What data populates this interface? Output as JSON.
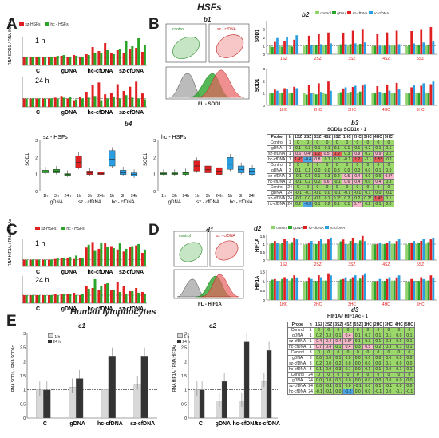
{
  "header": {
    "hsfs_title": "HSFs",
    "lymph_title": "Human lymphocytes"
  },
  "panels": {
    "A": "A",
    "B": "B",
    "C": "C",
    "D": "D",
    "E": "E"
  },
  "sublabels": {
    "b1": "b1",
    "b2": "b2",
    "b3": "b3",
    "b4": "b4",
    "d1": "d1",
    "d2": "d2",
    "d3": "d3",
    "e1": "e1",
    "e2": "e2"
  },
  "legends": {
    "sz": "sz-HSFs",
    "hc": "hc - HSFs",
    "hc2": "hc - HSFs",
    "control": "control",
    "gdna": "gDNA",
    "szcf": "sz-cfDNA",
    "hccf": "hc-cfDNA",
    "h1": "1 h",
    "h24": "24 h"
  },
  "flow": {
    "control": "control",
    "sz": "sz - cfDNA",
    "fl_sod": "FL - SOD1",
    "fl_hif": "FL - HIF1A"
  },
  "b3_title": "SOD1ᵢ/ SOD1c - 1",
  "d3_title": "HIF1Aᵢ/ HIF1Ac - 1",
  "colors": {
    "red": "#e02020",
    "green": "#2aa52a",
    "blue": "#2a9ee0",
    "lightgreen": "#8fd16a",
    "dark": "#333333",
    "light": "#d8d8d8"
  },
  "chart_data": [
    {
      "id": "A1",
      "type": "bar",
      "panel": "A",
      "time": "1 h",
      "ylabel": "RNA SOD1ᵢ / RNA SOD1c",
      "groups": [
        "C",
        "gDNA",
        "hc-cfDNA",
        "sz-cfDNA"
      ],
      "series": [
        {
          "name": "sz-HSFs",
          "values": [
            1,
            1,
            1,
            1,
            1,
            1.1,
            1.2,
            1.0,
            1.3,
            1.1,
            1.4,
            2.3,
            1.8,
            2.8,
            1.6,
            1.9,
            1.5,
            2.1,
            2.2,
            1.7
          ]
        },
        {
          "name": "hc - HSFs",
          "values": [
            1,
            1,
            1,
            1,
            1,
            1.2,
            1.3,
            1.1,
            1.2,
            1.0,
            1.3,
            1.6,
            1.5,
            1.9,
            1.4,
            2.0,
            3.1,
            2.4,
            3.4,
            2.6
          ]
        }
      ]
    },
    {
      "id": "A2",
      "type": "bar",
      "panel": "A",
      "time": "24 h",
      "groups": [
        "C",
        "gDNA",
        "hc-cfDNA",
        "sz-cfDNA"
      ],
      "series": [
        {
          "name": "sz-HSFs",
          "values": [
            1,
            1,
            1,
            1,
            1,
            1.1,
            1.3,
            1.0,
            0.8,
            1.2,
            1.8,
            2.6,
            2.9,
            1.5,
            1.7,
            2.7,
            1.9,
            2.4,
            3.0,
            1.6
          ]
        },
        {
          "name": "hc - HSFs",
          "values": [
            1,
            1,
            1,
            1,
            1,
            1.0,
            1.1,
            1.2,
            0.9,
            1.0,
            1.1,
            1.3,
            0.8,
            1.0,
            1.2,
            1.0,
            1.4,
            1.1,
            1.0,
            0.9
          ]
        }
      ]
    },
    {
      "id": "b2top",
      "type": "bar",
      "panel": "b2",
      "ylabel": "SOD1",
      "categories": [
        "1SZ",
        "2SZ",
        "3SZ",
        "4SZ",
        "5SZ"
      ],
      "series": [
        {
          "name": "control",
          "values": [
            1,
            1,
            1,
            1,
            1
          ]
        },
        {
          "name": "gDNA",
          "values": [
            0.9,
            1.1,
            1.2,
            1.0,
            1.1
          ]
        },
        {
          "name": "sz-cfDNA",
          "values": [
            1.6,
            2.4,
            2.8,
            2.6,
            3.0
          ]
        },
        {
          "name": "hc-cfDNA",
          "values": [
            2.1,
            1.2,
            1.3,
            1.1,
            1.4
          ]
        }
      ],
      "ylim": [
        0,
        4
      ]
    },
    {
      "id": "b2bot",
      "type": "bar",
      "panel": "b2",
      "ylabel": "SOD1",
      "categories": [
        "1HC",
        "2HC",
        "3HC",
        "4HC",
        "5HC"
      ],
      "series": [
        {
          "name": "control",
          "values": [
            1,
            1,
            1,
            1,
            1
          ]
        },
        {
          "name": "gDNA",
          "values": [
            1.0,
            0.9,
            1.1,
            1.0,
            1.0
          ]
        },
        {
          "name": "sz-cfDNA",
          "values": [
            1.4,
            1.8,
            1.5,
            1.7,
            1.6
          ]
        },
        {
          "name": "hc-cfDNA",
          "values": [
            1.3,
            1.1,
            1.6,
            1.2,
            1.8
          ]
        }
      ],
      "ylim": [
        0,
        3
      ]
    },
    {
      "id": "b4sz",
      "type": "box",
      "panel": "b4",
      "title": "sz - HSFs",
      "ylabel": "SOD1",
      "groups": [
        "gDNA",
        "sz - cfDNA",
        "hc - cfDNA"
      ],
      "times": [
        "1h",
        "3h",
        "24h"
      ],
      "boxes": [
        [
          1.1,
          1.15,
          1.25
        ],
        [
          1.1,
          1.2,
          1.3
        ],
        [
          0.95,
          1.0,
          1.05
        ],
        [
          1.4,
          1.7,
          2.1
        ],
        [
          1.0,
          1.1,
          1.2
        ],
        [
          1.0,
          1.05,
          1.15
        ],
        [
          1.5,
          1.9,
          2.4
        ],
        [
          1.0,
          1.1,
          1.25
        ],
        [
          0.9,
          1.0,
          1.1
        ]
      ]
    },
    {
      "id": "b4hc",
      "type": "box",
      "panel": "b4",
      "title": "hc - HSFs",
      "ylabel": "SOD1",
      "groups": [
        "gDNA",
        "sz - cfDNA",
        "hc - cfDNA"
      ],
      "times": [
        "1h",
        "3h",
        "24h"
      ],
      "boxes": [
        [
          1.0,
          1.05,
          1.1
        ],
        [
          1.0,
          1.05,
          1.1
        ],
        [
          1.0,
          1.1,
          1.15
        ],
        [
          1.2,
          1.5,
          1.8
        ],
        [
          1.1,
          1.3,
          1.5
        ],
        [
          1.0,
          1.2,
          1.4
        ],
        [
          1.3,
          1.6,
          2.0
        ],
        [
          1.1,
          1.3,
          1.5
        ],
        [
          1.0,
          1.2,
          1.35
        ]
      ]
    },
    {
      "id": "C1",
      "type": "bar",
      "panel": "C",
      "time": "1 h",
      "ylabel": "RNA HIF1Aᵢ / RNA HIF1Ac",
      "groups": [
        "C",
        "gDNA",
        "hc-cfDNA",
        "sz-cfDNA"
      ],
      "series": [
        {
          "name": "sz-HSFs",
          "values": [
            1,
            1,
            1,
            1,
            1,
            1.1,
            1.2,
            1.3,
            1.1,
            1.2,
            2.8,
            3.6,
            2.6,
            3.4,
            3.0,
            2.5,
            2.2,
            2.9,
            3.1,
            2.0
          ]
        },
        {
          "name": "hc - HSFs",
          "values": [
            1,
            1,
            1,
            1,
            1,
            1.2,
            1.3,
            1.4,
            1.6,
            1.2,
            3.2,
            2.4,
            3.5,
            2.9,
            2.7,
            3.4,
            2.6,
            3.0,
            3.3,
            2.5
          ]
        }
      ]
    },
    {
      "id": "C2",
      "type": "bar",
      "panel": "C",
      "time": "24 h",
      "groups": [
        "C",
        "gDNA",
        "hc-cfDNA",
        "sz-cfDNA"
      ],
      "series": [
        {
          "name": "sz-HSFs",
          "values": [
            1,
            1,
            1,
            1,
            1,
            1.1,
            1.2,
            1.2,
            1.3,
            1.0,
            2.2,
            1.9,
            1.6,
            2.4,
            1.7,
            2.6,
            2.1,
            1.5,
            1.9,
            1.4
          ]
        },
        {
          "name": "hc - HSFs",
          "values": [
            1,
            1,
            1,
            1,
            1,
            1.0,
            1.1,
            1.2,
            1.0,
            1.1,
            1.8,
            3.0,
            2.1,
            2.5,
            1.6,
            1.4,
            1.2,
            1.5,
            1.3,
            1.1
          ]
        }
      ]
    },
    {
      "id": "d2top",
      "type": "bar",
      "panel": "d2",
      "ylabel": "HIF1A",
      "categories": [
        "1SZ",
        "2SZ",
        "3SZ",
        "4SZ",
        "5SZ"
      ],
      "series": [
        {
          "name": "control",
          "values": [
            1,
            1,
            1,
            1,
            1
          ]
        },
        {
          "name": "gDNA",
          "values": [
            1.1,
            1.0,
            1.2,
            1.0,
            1.1
          ]
        },
        {
          "name": "sz-cfDNA",
          "values": [
            1.3,
            1.2,
            1.4,
            1.1,
            1.2
          ]
        },
        {
          "name": "hc-cfDNA",
          "values": [
            1.2,
            1.3,
            1.1,
            1.2,
            1.3
          ]
        }
      ],
      "ylim": [
        0,
        1.6
      ]
    },
    {
      "id": "d2bot",
      "type": "bar",
      "panel": "d2",
      "ylabel": "HIF1A",
      "categories": [
        "1HC",
        "2HC",
        "3HC",
        "4HC",
        "5HC"
      ],
      "series": [
        {
          "name": "control",
          "values": [
            1,
            1,
            1,
            1,
            1
          ]
        },
        {
          "name": "gDNA",
          "values": [
            1.1,
            1.0,
            1.1,
            1.0,
            1.0
          ]
        },
        {
          "name": "sz-cfDNA",
          "values": [
            1.2,
            1.3,
            1.2,
            1.1,
            1.2
          ]
        },
        {
          "name": "hc-cfDNA",
          "values": [
            1.1,
            1.2,
            1.3,
            1.2,
            1.1
          ]
        }
      ],
      "ylim": [
        0,
        1.6
      ]
    },
    {
      "id": "e1",
      "type": "bar",
      "panel": "e1",
      "ylabel": "RNA SOD1ᵢ / RNA SOD1c",
      "categories": [
        "C",
        "gDNA",
        "hc-cfDNA",
        "sz-cfDNA"
      ],
      "series": [
        {
          "name": "1 h",
          "values": [
            1.0,
            1.1,
            1.0,
            1.2
          ]
        },
        {
          "name": "24 h",
          "values": [
            1.0,
            1.4,
            2.2,
            2.2
          ]
        }
      ],
      "ylim": [
        0,
        3
      ]
    },
    {
      "id": "e2",
      "type": "bar",
      "panel": "e2",
      "ylabel": "RNA HIF1Aᵢ / RNA HIF1Ac",
      "categories": [
        "C",
        "gDNA",
        "hc-cfDNA",
        "sz-cfDNA"
      ],
      "series": [
        {
          "name": "1 h",
          "values": [
            1.0,
            0.6,
            0.6,
            1.3
          ]
        },
        {
          "name": "24 h",
          "values": [
            1.0,
            1.3,
            2.7,
            2.4
          ]
        }
      ],
      "ylim": [
        0,
        3
      ]
    }
  ],
  "b3_table": {
    "header": [
      "Probe",
      "h",
      "1SZ",
      "2SZ",
      "3SZ",
      "4SZ",
      "5SZ",
      "1HC",
      "2HC",
      "3HC",
      "4HC",
      "5HC"
    ],
    "rows": [
      [
        "Control",
        "1",
        "0",
        "0",
        "0",
        "0",
        "0",
        "0",
        "0",
        "0",
        "0",
        "0"
      ],
      [
        "gDNA",
        "1",
        "0.1",
        "0.3",
        "0.1",
        "0.1",
        "0.1",
        "0.1",
        "0.1",
        "0.2",
        "0.1",
        "0.1"
      ],
      [
        "sz-cfDNA",
        "1",
        "0.6",
        "0.4*",
        "1.2",
        "0.5*",
        "1.9",
        "0.3",
        "0.9",
        "0.2",
        "0.9",
        "0.2"
      ],
      [
        "hc-cfDNA",
        "1",
        "1.4*",
        "-0.4",
        "0.8",
        "0.1",
        "0.3",
        "-0.1",
        "1.2",
        "-0.1",
        "1.5*",
        "-0.1"
      ],
      [
        "Control",
        "3",
        "0",
        "0",
        "0",
        "0",
        "0",
        "0",
        "0",
        "0",
        "0",
        "0"
      ],
      [
        "gDNA",
        "3",
        "0.1",
        "0.1",
        "0.0",
        "0.0",
        "0.3",
        "0.0",
        "0.0",
        "0.0",
        "0.1",
        "0.0"
      ],
      [
        "sz-cfDNA",
        "3",
        "-0.1",
        "0.1",
        "0.1",
        "0.3",
        "0.2",
        "0.5",
        "0.4",
        "0.0",
        "0.0",
        "0.6*"
      ],
      [
        "hc-cfDNA",
        "3",
        "-0.1",
        "0.2",
        "0.2",
        "0.6*",
        "-0.1",
        "0.6",
        "0.4",
        "0.0",
        "0.4",
        "0.3"
      ],
      [
        "Control",
        "24",
        "0",
        "0",
        "0",
        "0",
        "0",
        "0",
        "0",
        "0",
        "0",
        "0"
      ],
      [
        "gDNA",
        "24",
        "-0.1",
        "-0.1",
        "-0.1",
        "0.0",
        "-0.1",
        "-0.1",
        "-0.1",
        "0.1",
        "0.0",
        "-0.1"
      ],
      [
        "sz-cfDNA",
        "24",
        "-0.1",
        "0.0",
        "-0.1",
        "0.1",
        "0.3*",
        "0.2",
        "0.2",
        "0.2*",
        "1.4*",
        "0.1"
      ],
      [
        "hc-cfDNA",
        "24",
        "0.2",
        "-0.3",
        "0.1",
        "0.2",
        "0.1",
        "0.1",
        "0.7*",
        "0.2",
        "0.1",
        "0.0"
      ]
    ]
  },
  "d3_table": {
    "header": [
      "Probe",
      "h",
      "1SZ",
      "2SZ",
      "3SZ",
      "4SZ",
      "5SZ",
      "1HC",
      "2HC",
      "3HC",
      "4HC",
      "5HC"
    ],
    "rows": [
      [
        "Control",
        "1",
        "0",
        "0",
        "0",
        "0",
        "0",
        "0",
        "0",
        "0",
        "0",
        "0"
      ],
      [
        "gDNA",
        "1",
        "0.2",
        "0.3",
        "0.1",
        "0.4",
        "0.1",
        "0.1",
        "0.1",
        "0.1",
        "0.0",
        "0.1"
      ],
      [
        "sz-cfDNA",
        "1",
        "0.4",
        "0.4",
        "0.4",
        "0.6*",
        "0.1",
        "0.3",
        "0.1",
        "0.3",
        "0.0",
        "0.1"
      ],
      [
        "hc-cfDNA",
        "1",
        "0.7",
        "0.4",
        "0.1",
        "0.4",
        "0.3",
        "0.5",
        "0.2",
        "0.3",
        "0.1",
        "0.1"
      ],
      [
        "Control",
        "3",
        "0",
        "0",
        "0",
        "0",
        "0",
        "0",
        "0",
        "0",
        "0",
        "0"
      ],
      [
        "gDNA",
        "3",
        "0.0",
        "0.0",
        "0.1",
        "0.0",
        "0.0",
        "0.0",
        "0.0",
        "0.0",
        "0.0",
        "0.0"
      ],
      [
        "sz-cfDNA",
        "3",
        "0.2",
        "0.0",
        "0.2",
        "0.0",
        "0.0",
        "0.0",
        "0.0",
        "0.1",
        "0.0",
        "0.0"
      ],
      [
        "hc-cfDNA",
        "3",
        "0.1",
        "0.0",
        "0.3",
        "0.1",
        "0.0",
        "0.1",
        "0.1",
        "0.0",
        "0.1",
        "0.1"
      ],
      [
        "Control",
        "24",
        "0",
        "0",
        "0",
        "0",
        "0",
        "0",
        "0",
        "0",
        "0",
        "0"
      ],
      [
        "gDNA",
        "24",
        "0.0",
        "0.0",
        "0.1",
        "0.0",
        "0.0",
        "0.0",
        "0.0",
        "0.0",
        "0.0",
        "0.0"
      ],
      [
        "sz-cfDNA",
        "24",
        "0.0",
        "-0.1",
        "0.1",
        "0.0",
        "-0.1",
        "0.0",
        "0.1",
        "-0.1",
        "0.0",
        "0.0"
      ],
      [
        "hc-cfDNA",
        "24",
        "-0.1",
        "-0.1",
        "0.0",
        "-0.2",
        "0.0",
        "0.0",
        "-0.1",
        "0.0",
        "-0.1",
        "-0.1"
      ]
    ]
  }
}
